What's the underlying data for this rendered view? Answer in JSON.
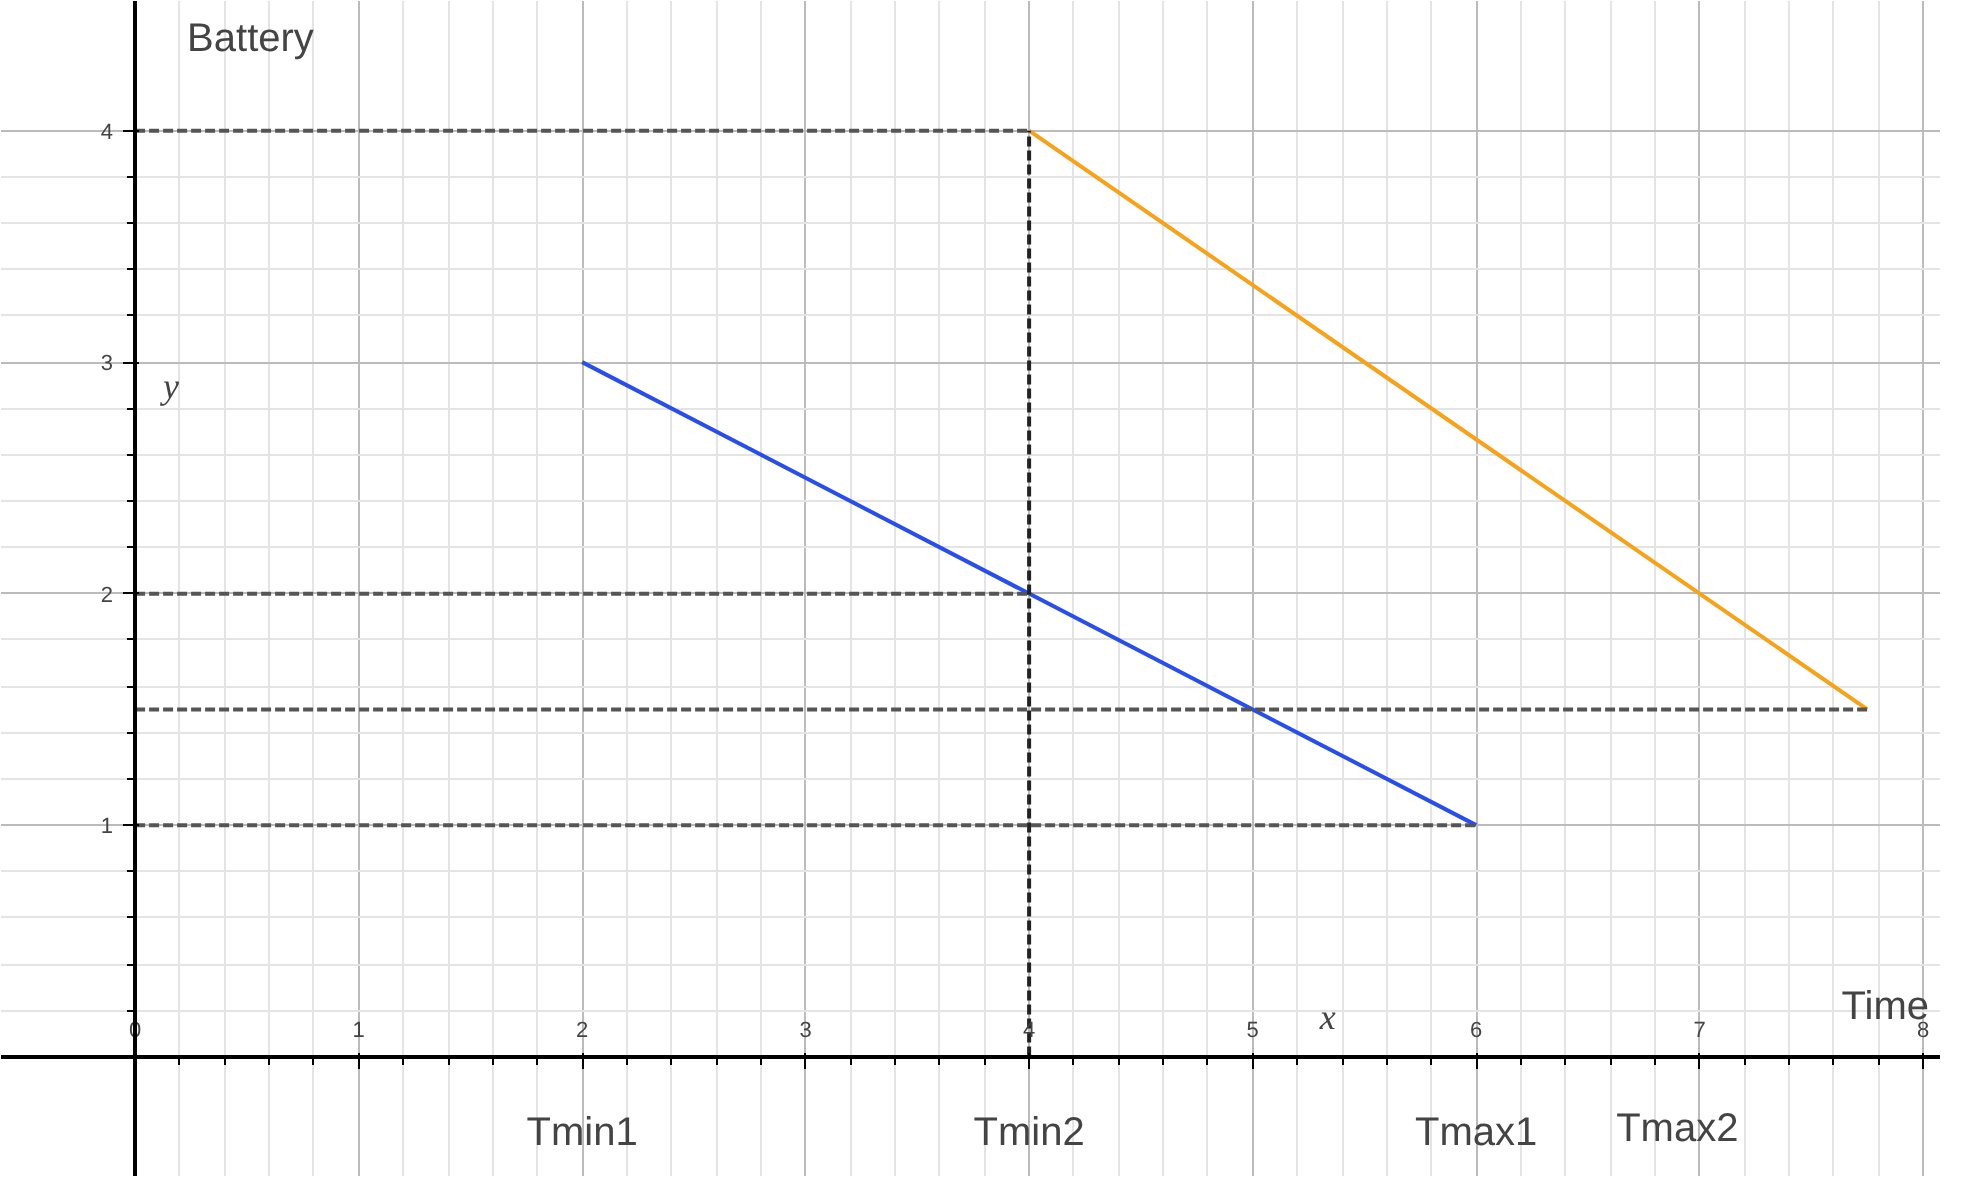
{
  "chart_data": {
    "type": "line",
    "xlabel": "Time",
    "ylabel": "Battery",
    "xlim": [
      -0.6,
      8.08
    ],
    "ylim": [
      -0.52,
      4.56
    ],
    "xticks": [
      0,
      1,
      2,
      3,
      4,
      5,
      6,
      7,
      8
    ],
    "yticks": [
      1,
      2,
      3,
      4
    ],
    "grid": true,
    "series": [
      {
        "color": "#2a4fe6",
        "x": [
          2,
          6
        ],
        "values": [
          3,
          1
        ]
      },
      {
        "color": "#f5a21c",
        "x": [
          4,
          7.75
        ],
        "values": [
          4,
          1.5
        ]
      },
      {
        "color": "#555555",
        "line_style": "dashed",
        "x": [
          0,
          4
        ],
        "values": [
          4,
          4
        ]
      },
      {
        "color": "#555555",
        "line_style": "dashed",
        "x": [
          0,
          4
        ],
        "values": [
          2,
          2
        ]
      },
      {
        "color": "#555555",
        "line_style": "dashed",
        "x": [
          0,
          7.75
        ],
        "values": [
          1.5,
          1.5
        ]
      },
      {
        "color": "#555555",
        "line_style": "dashed",
        "x": [
          0,
          6
        ],
        "values": [
          1,
          1
        ]
      },
      {
        "color": "#222222",
        "line_style": "dashed",
        "x": [
          4,
          4
        ],
        "values": [
          0,
          4
        ]
      }
    ],
    "annotations": [
      "x",
      "y",
      "Tmin1",
      "Tmin2",
      "Tmax1",
      "Tmax2"
    ]
  }
}
